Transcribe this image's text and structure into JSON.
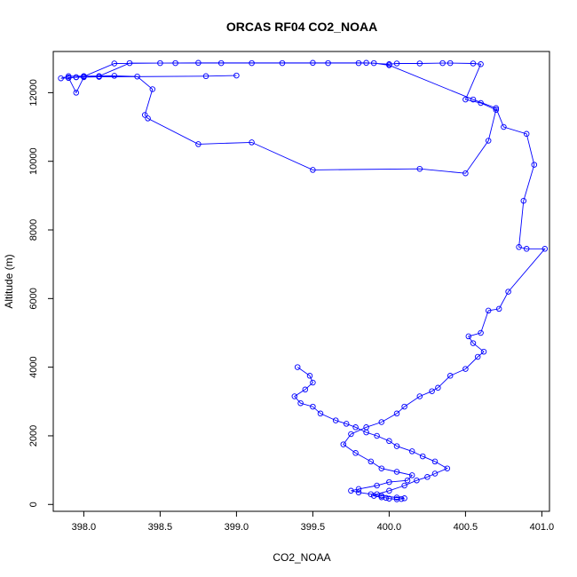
{
  "chart_data": {
    "type": "line",
    "title": "ORCAS RF04 CO2_NOAA",
    "xlabel": "CO2_NOAA",
    "ylabel": "Altitude (m)",
    "xlim": [
      397.8,
      401.05
    ],
    "ylim": [
      -200,
      13200
    ],
    "xticks": [
      398.0,
      398.5,
      399.0,
      399.5,
      400.0,
      400.5,
      401.0
    ],
    "xtick_labels": [
      "398.0",
      "398.5",
      "399.0",
      "399.5",
      "400.0",
      "400.5",
      "401.0"
    ],
    "yticks": [
      0,
      2000,
      4000,
      6000,
      8000,
      10000,
      12000
    ],
    "ytick_labels": [
      "0",
      "2000",
      "4000",
      "6000",
      "8000",
      "10000",
      "12000"
    ],
    "grid": false,
    "series": [
      {
        "color": "#0000ff",
        "marker": "open-circle",
        "x": [
          399.0,
          398.8,
          398.1,
          397.95,
          397.9,
          397.85,
          397.9,
          398.0,
          398.2,
          398.35,
          398.45,
          398.4,
          398.42,
          398.75,
          399.1,
          399.5,
          400.2,
          400.5,
          400.65,
          400.7,
          400.6,
          400.5,
          400.6,
          400.55,
          400.4,
          400.35,
          400.2,
          400.05,
          400.0,
          399.85,
          399.5,
          398.75,
          398.5,
          398.2,
          398.0,
          397.95,
          397.9,
          397.95,
          398.0,
          398.1,
          398.3,
          398.6,
          398.9,
          399.1,
          399.3,
          399.6,
          399.8,
          399.9,
          400.0,
          400.55,
          400.7,
          400.75,
          400.9,
          400.95,
          400.88,
          400.85,
          400.9,
          401.02,
          400.78,
          400.72,
          400.65,
          400.6,
          400.52,
          400.55,
          400.62,
          400.58,
          400.5,
          400.4,
          400.32,
          400.28,
          400.2,
          400.1,
          400.05,
          399.95,
          399.85,
          399.75,
          399.7,
          399.78,
          399.88,
          399.95,
          400.05,
          400.15,
          400.12,
          400.0,
          399.92,
          399.8,
          399.75,
          399.8,
          399.88,
          399.95,
          400.05,
          400.1,
          400.08,
          400.05,
          400.0,
          399.98,
          399.95,
          399.9,
          399.92,
          400.0,
          400.1,
          400.18,
          400.25,
          400.3,
          400.38,
          400.3,
          400.22,
          400.15,
          400.05,
          400.0,
          399.92,
          399.85,
          399.78,
          399.72,
          399.65,
          399.55,
          399.5,
          399.42,
          399.38,
          399.45,
          399.5,
          399.48,
          399.4
        ],
        "y": [
          12500,
          12480,
          12460,
          12450,
          12430,
          12420,
          12480,
          12480,
          12490,
          12470,
          12100,
          11350,
          11250,
          10500,
          10550,
          9750,
          9780,
          9650,
          10600,
          11500,
          11700,
          11800,
          12830,
          12850,
          12860,
          12860,
          12850,
          12850,
          12830,
          12870,
          12870,
          12870,
          12860,
          12850,
          12470,
          12450,
          12440,
          12000,
          12450,
          12480,
          12860,
          12860,
          12860,
          12860,
          12860,
          12860,
          12860,
          12860,
          12800,
          11800,
          11550,
          11000,
          10800,
          9900,
          8850,
          7500,
          7450,
          7450,
          6200,
          5700,
          5650,
          5000,
          4900,
          4700,
          4450,
          4300,
          3950,
          3750,
          3400,
          3300,
          3150,
          2850,
          2650,
          2400,
          2250,
          2050,
          1750,
          1500,
          1250,
          1050,
          950,
          850,
          700,
          650,
          550,
          450,
          400,
          350,
          300,
          250,
          200,
          180,
          160,
          150,
          170,
          190,
          210,
          250,
          300,
          400,
          550,
          700,
          800,
          900,
          1050,
          1250,
          1400,
          1550,
          1700,
          1850,
          2000,
          2100,
          2250,
          2350,
          2450,
          2650,
          2850,
          2950,
          3150,
          3350,
          3550,
          3750,
          4000
        ]
      }
    ]
  }
}
